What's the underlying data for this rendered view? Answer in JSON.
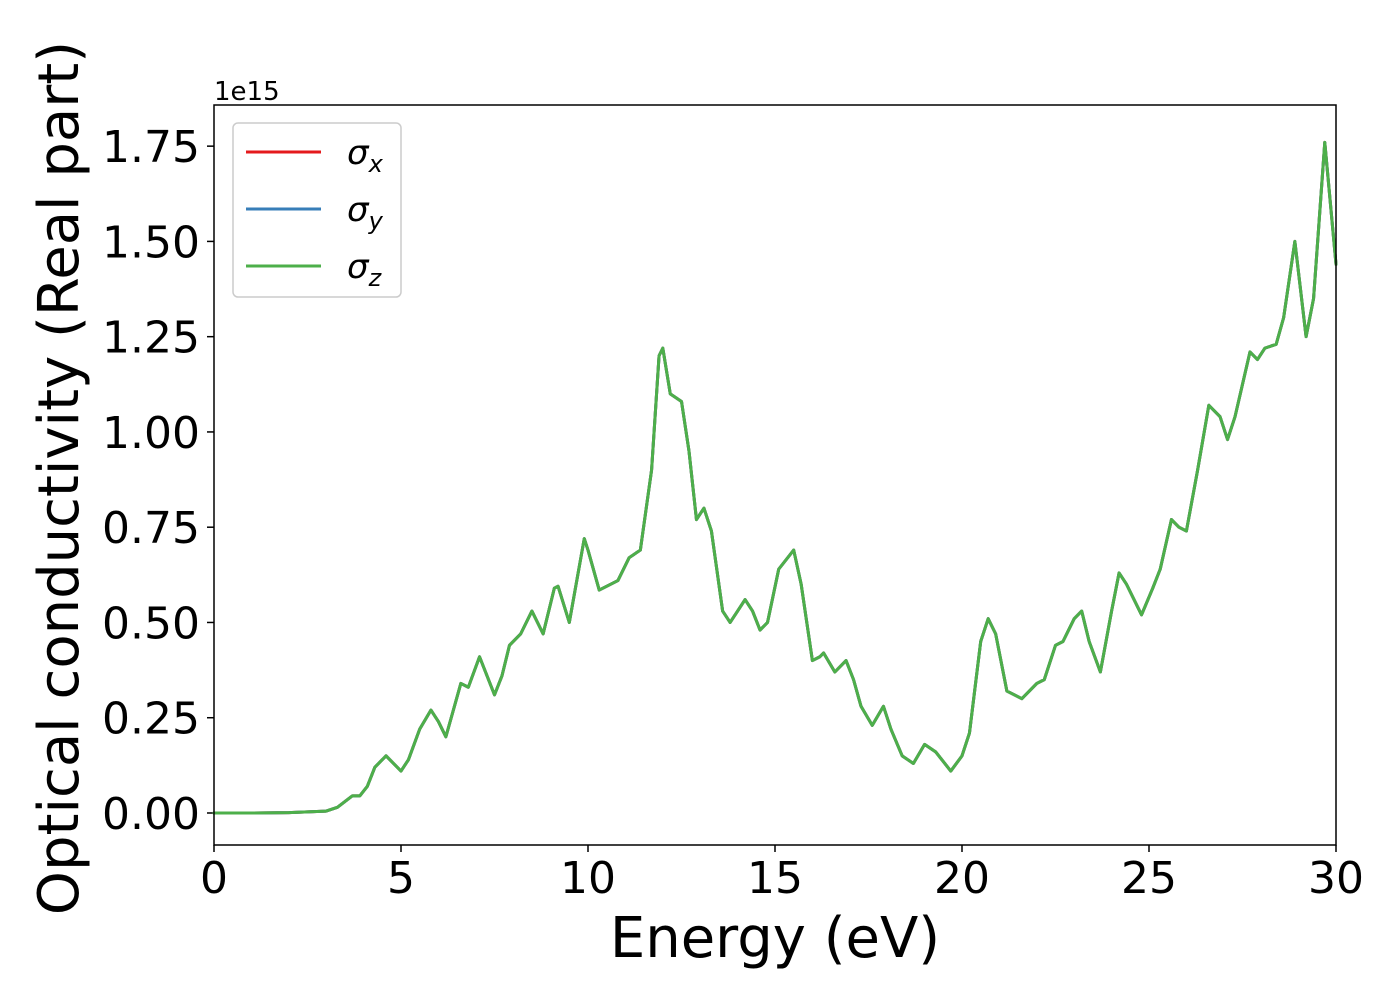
{
  "chart_data": {
    "type": "line",
    "xlabel": "Energy (eV)",
    "ylabel": "Optical conductivity (Real part)",
    "offset_label": "1e15",
    "x": [
      0,
      1,
      2,
      3,
      3.3,
      3.5,
      3.7,
      3.9,
      4.1,
      4.3,
      4.6,
      4.8,
      5.0,
      5.2,
      5.5,
      5.8,
      6.0,
      6.2,
      6.4,
      6.6,
      6.8,
      7.1,
      7.3,
      7.5,
      7.7,
      7.9,
      8.2,
      8.5,
      8.8,
      9.1,
      9.2,
      9.5,
      9.9,
      10.0,
      10.3,
      10.8,
      11.1,
      11.4,
      11.7,
      11.9,
      12.0,
      12.2,
      12.5,
      12.7,
      12.9,
      13.1,
      13.3,
      13.6,
      13.8,
      14.0,
      14.2,
      14.4,
      14.6,
      14.8,
      15.1,
      15.5,
      15.7,
      16.0,
      16.2,
      16.3,
      16.6,
      16.9,
      17.1,
      17.3,
      17.6,
      17.9,
      18.1,
      18.4,
      18.7,
      19.0,
      19.3,
      19.7,
      20.0,
      20.2,
      20.5,
      20.7,
      20.9,
      21.2,
      21.6,
      22.0,
      22.2,
      22.5,
      22.7,
      23.0,
      23.2,
      23.4,
      23.7,
      24.0,
      24.2,
      24.4,
      24.8,
      25.1,
      25.3,
      25.6,
      25.8,
      26.0,
      26.3,
      26.6,
      26.9,
      27.1,
      27.3,
      27.7,
      27.9,
      28.1,
      28.4,
      28.6,
      28.9,
      29.2,
      29.4,
      29.7,
      30.0
    ],
    "series": [
      {
        "name": "σx",
        "color": "#e41a1c",
        "values": [
          0,
          0,
          0.001,
          0.005,
          0.015,
          0.03,
          0.045,
          0.045,
          0.07,
          0.12,
          0.15,
          0.13,
          0.11,
          0.14,
          0.22,
          0.27,
          0.24,
          0.2,
          0.27,
          0.34,
          0.33,
          0.41,
          0.36,
          0.31,
          0.36,
          0.44,
          0.47,
          0.53,
          0.47,
          0.59,
          0.595,
          0.5,
          0.72,
          0.69,
          0.585,
          0.61,
          0.67,
          0.69,
          0.9,
          1.2,
          1.22,
          1.1,
          1.08,
          0.95,
          0.77,
          0.8,
          0.74,
          0.53,
          0.5,
          0.53,
          0.56,
          0.53,
          0.48,
          0.5,
          0.64,
          0.69,
          0.6,
          0.4,
          0.41,
          0.42,
          0.37,
          0.4,
          0.35,
          0.28,
          0.23,
          0.28,
          0.22,
          0.15,
          0.13,
          0.18,
          0.16,
          0.11,
          0.15,
          0.21,
          0.45,
          0.51,
          0.47,
          0.32,
          0.3,
          0.34,
          0.35,
          0.44,
          0.45,
          0.51,
          0.53,
          0.45,
          0.37,
          0.53,
          0.63,
          0.6,
          0.52,
          0.59,
          0.64,
          0.77,
          0.75,
          0.74,
          0.9,
          1.07,
          1.04,
          0.98,
          1.04,
          1.21,
          1.19,
          1.22,
          1.23,
          1.3,
          1.5,
          1.25,
          1.35,
          1.76,
          1.44
        ]
      },
      {
        "name": "σy",
        "color": "#377eb8",
        "values": [
          0,
          0,
          0.001,
          0.005,
          0.015,
          0.03,
          0.045,
          0.045,
          0.07,
          0.12,
          0.15,
          0.13,
          0.11,
          0.14,
          0.22,
          0.27,
          0.24,
          0.2,
          0.27,
          0.34,
          0.33,
          0.41,
          0.36,
          0.31,
          0.36,
          0.44,
          0.47,
          0.53,
          0.47,
          0.59,
          0.595,
          0.5,
          0.72,
          0.69,
          0.585,
          0.61,
          0.67,
          0.69,
          0.9,
          1.2,
          1.22,
          1.1,
          1.08,
          0.95,
          0.77,
          0.8,
          0.74,
          0.53,
          0.5,
          0.53,
          0.56,
          0.53,
          0.48,
          0.5,
          0.64,
          0.69,
          0.6,
          0.4,
          0.41,
          0.42,
          0.37,
          0.4,
          0.35,
          0.28,
          0.23,
          0.28,
          0.22,
          0.15,
          0.13,
          0.18,
          0.16,
          0.11,
          0.15,
          0.21,
          0.45,
          0.51,
          0.47,
          0.32,
          0.3,
          0.34,
          0.35,
          0.44,
          0.45,
          0.51,
          0.53,
          0.45,
          0.37,
          0.53,
          0.63,
          0.6,
          0.52,
          0.59,
          0.64,
          0.77,
          0.75,
          0.74,
          0.9,
          1.07,
          1.04,
          0.98,
          1.04,
          1.21,
          1.19,
          1.22,
          1.23,
          1.3,
          1.5,
          1.25,
          1.35,
          1.76,
          1.44
        ]
      },
      {
        "name": "σz",
        "color": "#4daf4a",
        "values": [
          0,
          0,
          0.001,
          0.005,
          0.015,
          0.03,
          0.045,
          0.045,
          0.07,
          0.12,
          0.15,
          0.13,
          0.11,
          0.14,
          0.22,
          0.27,
          0.24,
          0.2,
          0.27,
          0.34,
          0.33,
          0.41,
          0.36,
          0.31,
          0.36,
          0.44,
          0.47,
          0.53,
          0.47,
          0.59,
          0.595,
          0.5,
          0.72,
          0.69,
          0.585,
          0.61,
          0.67,
          0.69,
          0.9,
          1.2,
          1.22,
          1.1,
          1.08,
          0.95,
          0.77,
          0.8,
          0.74,
          0.53,
          0.5,
          0.53,
          0.56,
          0.53,
          0.48,
          0.5,
          0.64,
          0.69,
          0.6,
          0.4,
          0.41,
          0.42,
          0.37,
          0.4,
          0.35,
          0.28,
          0.23,
          0.28,
          0.22,
          0.15,
          0.13,
          0.18,
          0.16,
          0.11,
          0.15,
          0.21,
          0.45,
          0.51,
          0.47,
          0.32,
          0.3,
          0.34,
          0.35,
          0.44,
          0.45,
          0.51,
          0.53,
          0.45,
          0.37,
          0.53,
          0.63,
          0.6,
          0.52,
          0.59,
          0.64,
          0.77,
          0.75,
          0.74,
          0.9,
          1.07,
          1.04,
          0.98,
          1.04,
          1.21,
          1.19,
          1.22,
          1.23,
          1.3,
          1.5,
          1.25,
          1.35,
          1.76,
          1.44
        ]
      }
    ],
    "xlim": [
      0,
      30
    ],
    "xticks": [
      0,
      5,
      10,
      15,
      20,
      25,
      30
    ],
    "ylim": [
      -0.084,
      1.858
    ],
    "yticks": [
      {
        "value": 0,
        "label": "0.00"
      },
      {
        "value": 0.25,
        "label": "0.25"
      },
      {
        "value": 0.5,
        "label": "0.50"
      },
      {
        "value": 0.75,
        "label": "0.75"
      },
      {
        "value": 1,
        "label": "1.00"
      },
      {
        "value": 1.25,
        "label": "1.25"
      },
      {
        "value": 1.5,
        "label": "1.50"
      },
      {
        "value": 1.75,
        "label": "1.75"
      }
    ],
    "grid": false,
    "legend": "upper left"
  }
}
